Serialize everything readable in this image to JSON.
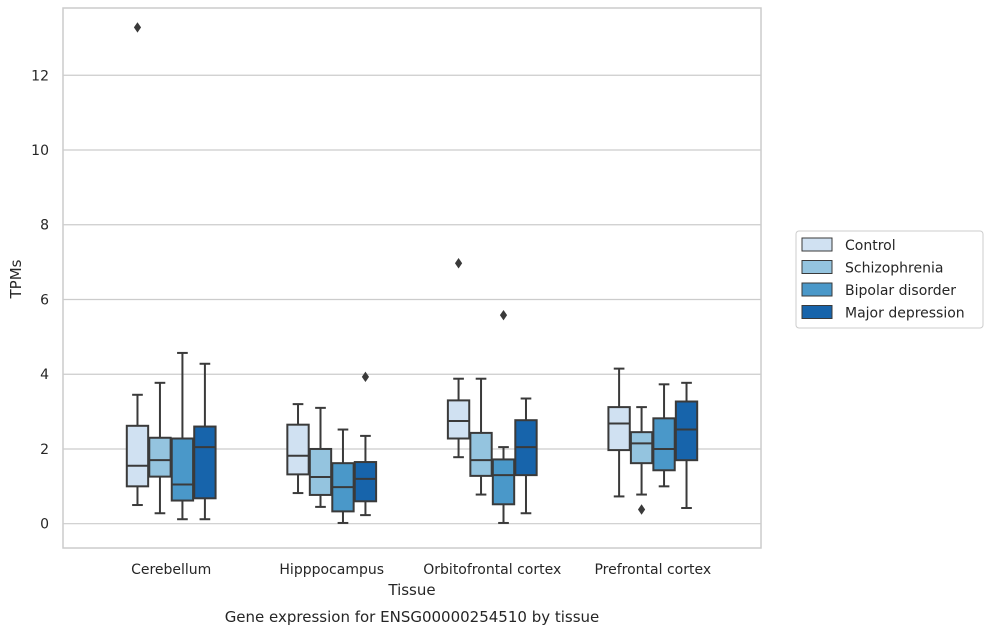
{
  "chart_data": {
    "type": "box",
    "xlabel": "Tissue",
    "ylabel": "TPMs",
    "caption": "Gene expression for ENSG00000254510 by tissue",
    "ylim": [
      -0.65,
      13.8
    ],
    "yticks": [
      0,
      2,
      4,
      6,
      8,
      10,
      12
    ],
    "grid": "horizontal",
    "legend_position": "right",
    "categories": [
      "Cerebellum",
      "Hipppocampus",
      "Orbitofrontal cortex",
      "Prefrontal cortex"
    ],
    "series": [
      {
        "name": "Control",
        "color": "#d0e1f2",
        "boxes": [
          {
            "whislo": 0.5,
            "q1": 1.0,
            "med": 1.55,
            "q3": 2.62,
            "whishi": 3.45,
            "fliers": [
              13.28
            ]
          },
          {
            "whislo": 0.82,
            "q1": 1.32,
            "med": 1.82,
            "q3": 2.65,
            "whishi": 3.2,
            "fliers": []
          },
          {
            "whislo": 1.78,
            "q1": 2.28,
            "med": 2.75,
            "q3": 3.3,
            "whishi": 3.88,
            "fliers": [
              6.97
            ]
          },
          {
            "whislo": 0.73,
            "q1": 1.97,
            "med": 2.68,
            "q3": 3.12,
            "whishi": 4.15,
            "fliers": []
          }
        ]
      },
      {
        "name": "Schizophrenia",
        "color": "#94c4df",
        "boxes": [
          {
            "whislo": 0.28,
            "q1": 1.26,
            "med": 1.7,
            "q3": 2.3,
            "whishi": 3.77,
            "fliers": []
          },
          {
            "whislo": 0.45,
            "q1": 0.77,
            "med": 1.25,
            "q3": 2.0,
            "whishi": 3.1,
            "fliers": []
          },
          {
            "whislo": 0.78,
            "q1": 1.28,
            "med": 1.7,
            "q3": 2.43,
            "whishi": 3.88,
            "fliers": []
          },
          {
            "whislo": 0.78,
            "q1": 1.62,
            "med": 2.15,
            "q3": 2.45,
            "whishi": 3.12,
            "fliers": [
              0.38
            ]
          }
        ]
      },
      {
        "name": "Bipolar disorder",
        "color": "#4a98c9",
        "boxes": [
          {
            "whislo": 0.12,
            "q1": 0.62,
            "med": 1.05,
            "q3": 2.28,
            "whishi": 4.57,
            "fliers": []
          },
          {
            "whislo": 0.02,
            "q1": 0.33,
            "med": 0.98,
            "q3": 1.62,
            "whishi": 2.52,
            "fliers": []
          },
          {
            "whislo": 0.02,
            "q1": 0.52,
            "med": 1.3,
            "q3": 1.72,
            "whishi": 2.05,
            "fliers": [
              5.58
            ]
          },
          {
            "whislo": 1.0,
            "q1": 1.43,
            "med": 2.0,
            "q3": 2.82,
            "whishi": 3.73,
            "fliers": []
          }
        ]
      },
      {
        "name": "Major depression",
        "color": "#1764ab",
        "boxes": [
          {
            "whislo": 0.12,
            "q1": 0.68,
            "med": 2.05,
            "q3": 2.6,
            "whishi": 4.28,
            "fliers": []
          },
          {
            "whislo": 0.23,
            "q1": 0.6,
            "med": 1.2,
            "q3": 1.65,
            "whishi": 2.35,
            "fliers": [
              3.93
            ]
          },
          {
            "whislo": 0.28,
            "q1": 1.3,
            "med": 2.05,
            "q3": 2.77,
            "whishi": 3.35,
            "fliers": []
          },
          {
            "whislo": 0.42,
            "q1": 1.7,
            "med": 2.52,
            "q3": 3.27,
            "whishi": 3.77,
            "fliers": []
          }
        ]
      }
    ]
  }
}
